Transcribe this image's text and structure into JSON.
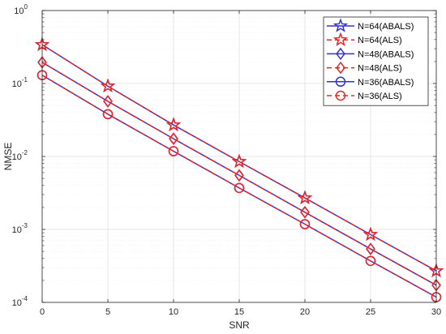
{
  "chart_data": {
    "type": "line",
    "xlabel": "SNR",
    "ylabel": "NMSE",
    "xlim": [
      0,
      30
    ],
    "ylim": [
      0.0001,
      1
    ],
    "yscale": "log",
    "grid": true,
    "legend_position": "top-right",
    "x": [
      0,
      5,
      10,
      15,
      20,
      25,
      30
    ],
    "x_ticks": [
      "0",
      "5",
      "10",
      "15",
      "20",
      "25",
      "30"
    ],
    "y_ticks": [
      {
        "value": 1,
        "base": "10",
        "exp": "0"
      },
      {
        "value": 0.1,
        "base": "10",
        "exp": "-1"
      },
      {
        "value": 0.01,
        "base": "10",
        "exp": "-2"
      },
      {
        "value": 0.001,
        "base": "10",
        "exp": "-3"
      },
      {
        "value": 0.0001,
        "base": "10",
        "exp": "-4"
      }
    ],
    "series": [
      {
        "name": "N=64(ABALS)",
        "color": "#3333cc",
        "dash": "solid",
        "marker": "star",
        "values": [
          0.34,
          0.092,
          0.027,
          0.0085,
          0.0027,
          0.00085,
          0.00027
        ]
      },
      {
        "name": "N=64(ALS)",
        "color": "#e8262a",
        "dash": "dashed",
        "marker": "star",
        "values": [
          0.34,
          0.092,
          0.027,
          0.0085,
          0.0027,
          0.00085,
          0.00027
        ]
      },
      {
        "name": "N=48(ABALS)",
        "color": "#3333cc",
        "dash": "solid",
        "marker": "diamond",
        "values": [
          0.195,
          0.057,
          0.0175,
          0.0055,
          0.00172,
          0.00054,
          0.000172
        ]
      },
      {
        "name": "N=48(ALS)",
        "color": "#e8262a",
        "dash": "dashed",
        "marker": "diamond",
        "values": [
          0.195,
          0.057,
          0.0175,
          0.0055,
          0.00172,
          0.00054,
          0.000172
        ]
      },
      {
        "name": "N=36(ABALS)",
        "color": "#3333cc",
        "dash": "solid",
        "marker": "circle",
        "values": [
          0.13,
          0.038,
          0.0118,
          0.0037,
          0.00118,
          0.00037,
          0.000118
        ]
      },
      {
        "name": "N=36(ALS)",
        "color": "#e8262a",
        "dash": "dashed",
        "marker": "circle",
        "values": [
          0.13,
          0.038,
          0.0118,
          0.0037,
          0.00118,
          0.00037,
          0.000118
        ]
      }
    ]
  }
}
